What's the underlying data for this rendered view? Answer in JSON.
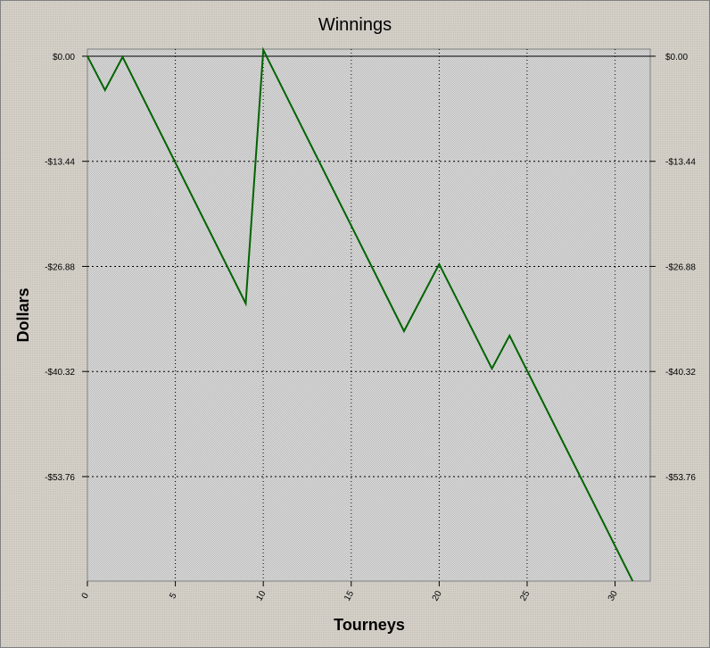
{
  "chart_data": {
    "type": "line",
    "title": "Winnings",
    "x_label": "Tourneys",
    "y_label": "Dollars",
    "x": [
      0,
      1,
      2,
      9,
      10,
      18,
      20,
      23,
      24,
      31
    ],
    "series": [
      {
        "name": "Winnings",
        "color": "#006400",
        "values": [
          0,
          -4.34,
          -0.1,
          -31.62,
          0.8,
          -35.16,
          -26.59,
          -39.95,
          -35.73,
          -67.11
        ]
      }
    ],
    "xlim": [
      0,
      32
    ],
    "xticks": [
      0,
      5,
      10,
      15,
      20,
      25,
      30
    ],
    "ylim": [
      -67.12,
      0.91
    ],
    "yticks": [
      {
        "value": 0,
        "label": "$0.00"
      },
      {
        "value": -13.44,
        "label": "-$13.44"
      },
      {
        "value": -26.88,
        "label": "-$26.88"
      },
      {
        "value": -40.32,
        "label": "-$40.32"
      },
      {
        "value": -53.76,
        "label": "-$53.76"
      }
    ],
    "grid": true
  }
}
